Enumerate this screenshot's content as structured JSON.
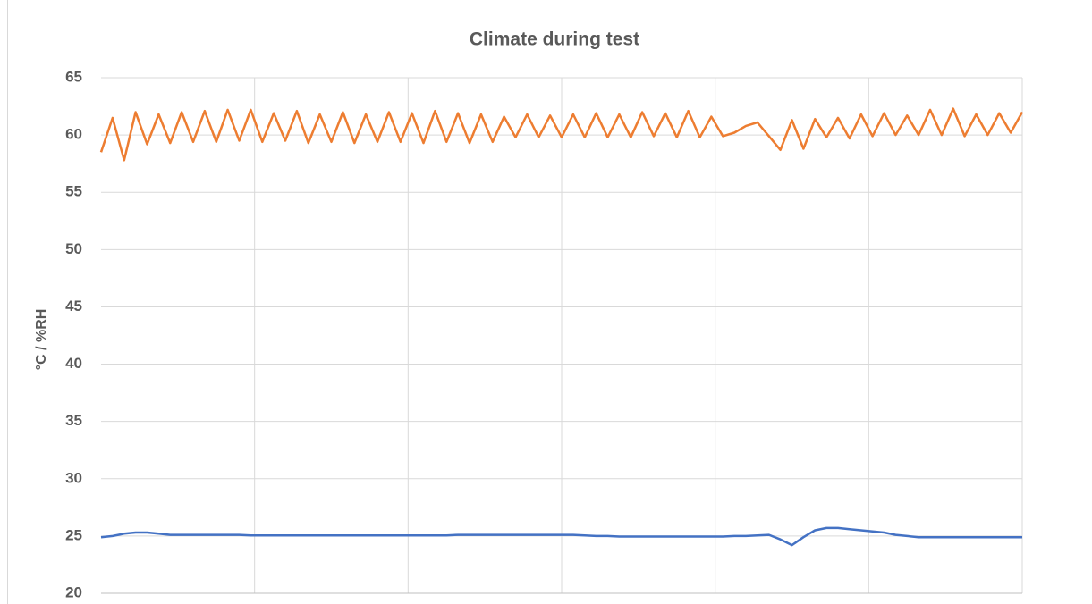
{
  "chart_data": {
    "type": "line",
    "title": "Climate during test",
    "y_label": "°C / %RH",
    "categories": [
      null,
      null,
      null,
      null,
      null,
      null,
      null,
      null,
      null,
      null,
      null,
      null,
      null,
      null,
      null,
      null,
      null,
      null,
      null,
      null,
      null,
      null,
      null,
      null,
      null,
      null,
      null,
      null,
      null,
      null,
      null,
      null,
      null,
      null,
      null,
      null,
      null,
      null,
      null,
      null,
      null,
      null,
      null,
      null,
      null,
      null,
      null,
      null,
      null,
      null,
      null,
      null,
      null,
      null,
      null,
      null,
      null,
      null,
      null,
      null,
      null,
      null,
      null,
      null,
      null,
      null,
      null,
      null,
      null,
      null,
      null,
      null,
      null,
      null,
      null,
      null,
      null,
      null,
      null,
      null,
      null
    ],
    "series": [
      {
        "color": "#ed7d31",
        "values": [
          58.5,
          61.5,
          57.8,
          62,
          59.2,
          61.8,
          59.3,
          62,
          59.4,
          62.1,
          59.4,
          62.2,
          59.5,
          62.2,
          59.4,
          61.9,
          59.5,
          62.1,
          59.3,
          61.8,
          59.4,
          62,
          59.3,
          61.8,
          59.4,
          62,
          59.4,
          61.9,
          59.3,
          62.1,
          59.4,
          61.9,
          59.3,
          61.8,
          59.4,
          61.6,
          59.8,
          61.8,
          59.8,
          61.7,
          59.8,
          61.8,
          59.8,
          61.9,
          59.8,
          61.8,
          59.8,
          62,
          59.9,
          61.9,
          59.8,
          62.1,
          59.8,
          61.6,
          59.9,
          60.2,
          60.8,
          61.1,
          59.9,
          58.7,
          61.3,
          58.8,
          61.4,
          59.8,
          61.5,
          59.7,
          61.8,
          59.9,
          61.9,
          60,
          61.7,
          60,
          62.2,
          60,
          62.3,
          59.9,
          61.8,
          60,
          61.9,
          60.2,
          62
        ]
      },
      {
        "color": "#4472c4",
        "values": [
          24.9,
          25,
          25.2,
          25.3,
          25.3,
          25.2,
          25.1,
          25.1,
          25.1,
          25.1,
          25.1,
          25.1,
          25.1,
          25.05,
          25.05,
          25.05,
          25.05,
          25.05,
          25.05,
          25.05,
          25.05,
          25.05,
          25.05,
          25.05,
          25.05,
          25.05,
          25.05,
          25.05,
          25.05,
          25.05,
          25.05,
          25.1,
          25.1,
          25.1,
          25.1,
          25.1,
          25.1,
          25.1,
          25.1,
          25.1,
          25.1,
          25.1,
          25.05,
          25.0,
          25.0,
          24.95,
          24.95,
          24.95,
          24.95,
          24.95,
          24.95,
          24.95,
          24.95,
          24.95,
          24.95,
          25.0,
          25.0,
          25.05,
          25.1,
          24.7,
          24.2,
          24.9,
          25.5,
          25.7,
          25.7,
          25.6,
          25.5,
          25.4,
          25.3,
          25.1,
          25,
          24.9,
          24.9,
          24.9,
          24.9,
          24.9,
          24.9,
          24.9,
          24.9,
          24.9,
          24.9
        ]
      }
    ],
    "ylim": [
      20,
      65
    ],
    "yticks": [
      20,
      25,
      30,
      35,
      40,
      45,
      50,
      55,
      60,
      65
    ],
    "grid": true
  }
}
